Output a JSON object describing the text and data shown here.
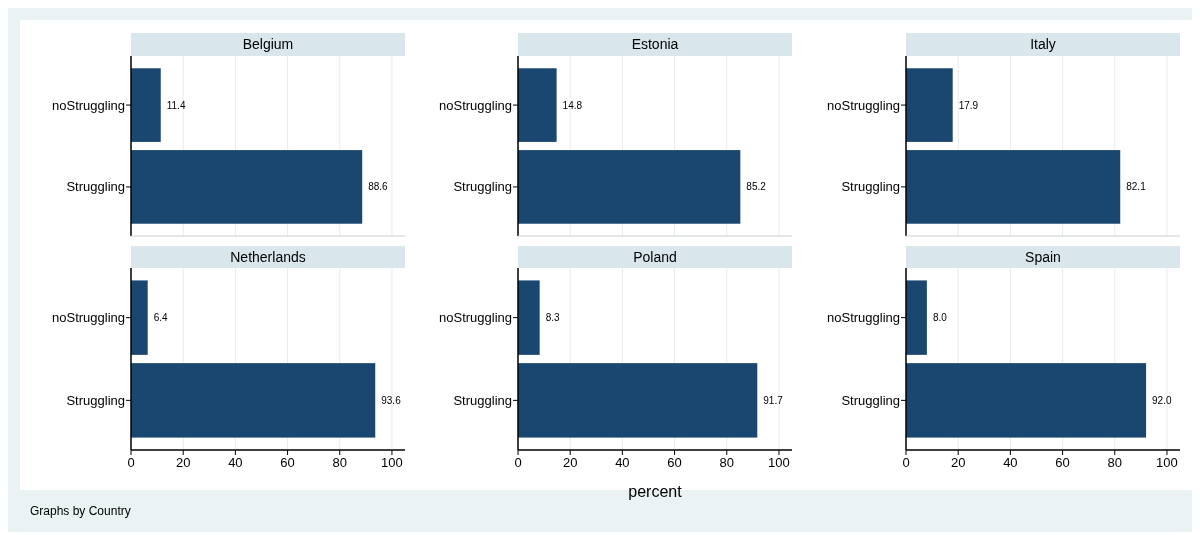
{
  "chart_data": [
    {
      "type": "bar",
      "orientation": "horizontal",
      "title": "Belgium",
      "categories": [
        "noStruggling",
        "Struggling"
      ],
      "values": [
        11.4,
        88.6
      ],
      "color": "#1a476f",
      "xlim": [
        0,
        105
      ],
      "xticks": [
        0,
        20,
        40,
        60,
        80,
        100
      ],
      "grid": "x",
      "data_labels": true,
      "tick_labels": "y"
    },
    {
      "type": "bar",
      "orientation": "horizontal",
      "title": "Estonia",
      "categories": [
        "noStruggling",
        "Struggling"
      ],
      "values": [
        14.8,
        85.2
      ],
      "color": "#1a476f",
      "xlim": [
        0,
        105
      ],
      "xticks": [
        0,
        20,
        40,
        60,
        80,
        100
      ],
      "grid": "x",
      "data_labels": true,
      "tick_labels": "y"
    },
    {
      "type": "bar",
      "orientation": "horizontal",
      "title": "Italy",
      "categories": [
        "noStruggling",
        "Struggling"
      ],
      "values": [
        17.9,
        82.1
      ],
      "color": "#1a476f",
      "xlim": [
        0,
        105
      ],
      "xticks": [
        0,
        20,
        40,
        60,
        80,
        100
      ],
      "grid": "x",
      "data_labels": true,
      "tick_labels": "y"
    },
    {
      "type": "bar",
      "orientation": "horizontal",
      "title": "Netherlands",
      "categories": [
        "noStruggling",
        "Struggling"
      ],
      "values": [
        6.4,
        93.6
      ],
      "color": "#1a476f",
      "xlim": [
        0,
        105
      ],
      "xticks": [
        0,
        20,
        40,
        60,
        80,
        100
      ],
      "grid": "x",
      "data_labels": true,
      "annotations": [
        "Graphs by Country"
      ]
    },
    {
      "type": "bar",
      "orientation": "horizontal",
      "title": "Poland",
      "categories": [
        "noStruggling",
        "Struggling"
      ],
      "values": [
        8.3,
        91.7
      ],
      "color": "#1a476f",
      "xlim": [
        0,
        105
      ],
      "xticks": [
        0,
        20,
        40,
        60,
        80,
        100
      ],
      "grid": "x",
      "data_labels": true,
      "xlabel": "percent"
    },
    {
      "type": "bar",
      "orientation": "horizontal",
      "title": "Spain",
      "categories": [
        "noStruggling",
        "Struggling"
      ],
      "values": [
        8.0,
        92.0
      ],
      "value_labels": [
        "8.0",
        "92.0"
      ],
      "color": "#1a476f",
      "xlim": [
        0,
        105
      ],
      "xticks": [
        0,
        20,
        40,
        60,
        80,
        100
      ],
      "grid": "x"
    }
  ]
}
